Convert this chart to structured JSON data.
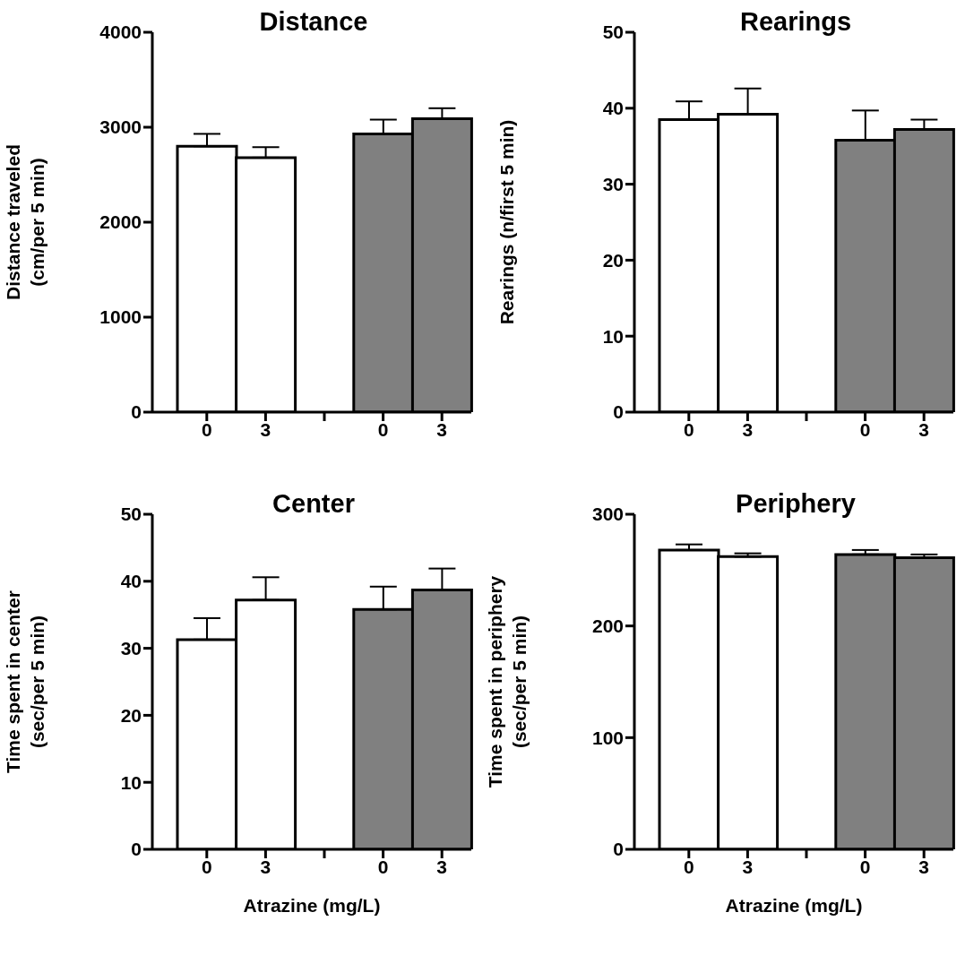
{
  "chart_data": [
    {
      "type": "bar",
      "title": "Distance",
      "ylabel": "Distance traveled\n(cm/per 5 min)",
      "categories": [
        "0",
        "3",
        null,
        "0",
        "3"
      ],
      "values": [
        2800,
        2680,
        null,
        2930,
        3090
      ],
      "colors": [
        "#ffffff",
        "#ffffff",
        null,
        "#808080",
        "#808080"
      ],
      "errors": [
        [
          2800,
          2930
        ],
        [
          2680,
          2790
        ],
        null,
        [
          2930,
          3080
        ],
        [
          3090,
          3200
        ]
      ],
      "ylim": [
        0,
        4000
      ],
      "yticks": [
        0,
        1000,
        2000,
        3000,
        4000
      ]
    },
    {
      "type": "bar",
      "title": "Rearings",
      "ylabel": "Rearings (n/first 5 min)",
      "categories": [
        "0",
        "3",
        null,
        "0",
        "3"
      ],
      "values": [
        38.5,
        39.2,
        null,
        35.8,
        37.2
      ],
      "colors": [
        "#ffffff",
        "#ffffff",
        null,
        "#808080",
        "#808080"
      ],
      "errors": [
        [
          38.5,
          40.9
        ],
        [
          39.2,
          42.6
        ],
        null,
        [
          35.8,
          39.7
        ],
        [
          37.2,
          38.5
        ]
      ],
      "ylim": [
        0,
        50
      ],
      "yticks": [
        0,
        10,
        20,
        30,
        40,
        50
      ]
    },
    {
      "type": "bar",
      "title": "Center",
      "ylabel": "Time spent in center\n(sec/per 5 min)",
      "xlabel": "Atrazine (mg/L)",
      "categories": [
        "0",
        "3",
        null,
        "0",
        "3"
      ],
      "values": [
        31.3,
        37.2,
        null,
        35.8,
        38.7
      ],
      "colors": [
        "#ffffff",
        "#ffffff",
        null,
        "#808080",
        "#808080"
      ],
      "errors": [
        [
          31.3,
          34.5
        ],
        [
          37.2,
          40.6
        ],
        null,
        [
          35.8,
          39.2
        ],
        [
          38.7,
          41.9
        ]
      ],
      "ylim": [
        0,
        50
      ],
      "yticks": [
        0,
        10,
        20,
        30,
        40,
        50
      ]
    },
    {
      "type": "bar",
      "title": "Periphery",
      "ylabel": "Time spent in periphery\n(sec/per 5 min)",
      "xlabel": "Atrazine (mg/L)",
      "categories": [
        "0",
        "3",
        null,
        "0",
        "3"
      ],
      "values": [
        268,
        262,
        null,
        264,
        261
      ],
      "colors": [
        "#ffffff",
        "#ffffff",
        null,
        "#808080",
        "#808080"
      ],
      "errors": [
        [
          268,
          273
        ],
        [
          262,
          265
        ],
        null,
        [
          264,
          268
        ],
        [
          261,
          264
        ]
      ],
      "ylim": [
        0,
        300
      ],
      "yticks": [
        0,
        100,
        200,
        300
      ]
    }
  ]
}
